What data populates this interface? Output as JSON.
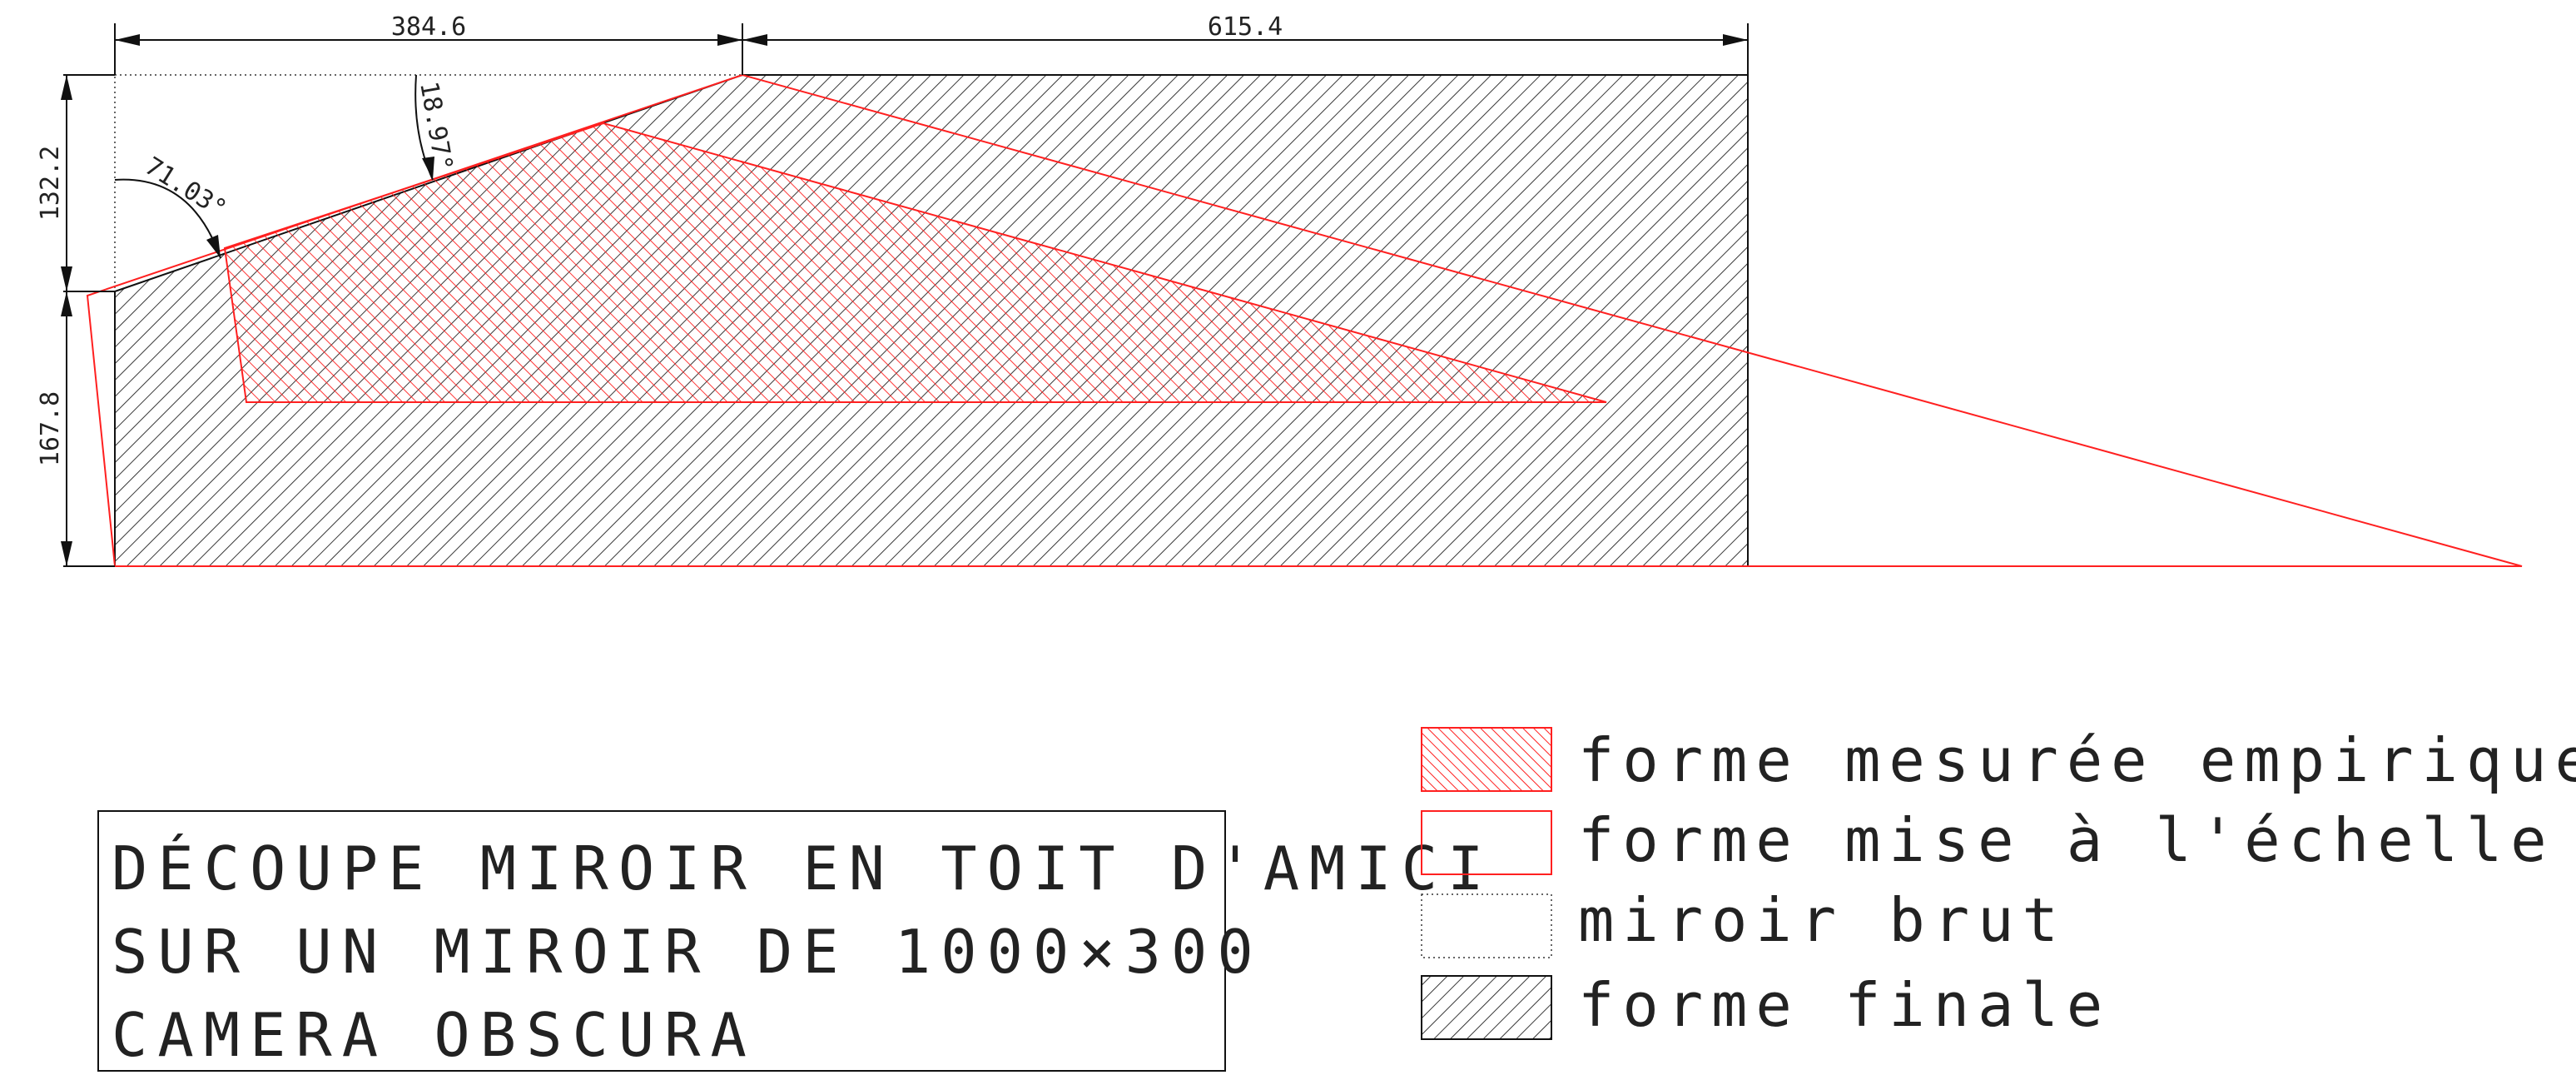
{
  "dimensions": {
    "top_left_width": "384.6",
    "top_right_width": "615.4",
    "left_upper_height": "132.2",
    "left_lower_height": "167.8",
    "angle_small": "18.97°",
    "angle_large": "71.03°"
  },
  "title_block": {
    "line1": "DÉCOUPE MIROIR EN TOIT D'AMICI",
    "line2": "SUR UN MIROIR DE 1000×300",
    "line3": "CAMERA OBSCURA"
  },
  "legend": {
    "items": [
      {
        "label": "forme mesurée empiriquement",
        "swatch": "red-hatch"
      },
      {
        "label": "forme mise à l'échelle",
        "swatch": "red-outline"
      },
      {
        "label": "miroir brut",
        "swatch": "dotted-outline"
      },
      {
        "label": "forme finale",
        "swatch": "dark-hatch"
      }
    ]
  },
  "colors": {
    "final_shape": "#111111",
    "empirical_shape": "#ff2020",
    "scaled_shape": "#ff2020"
  }
}
